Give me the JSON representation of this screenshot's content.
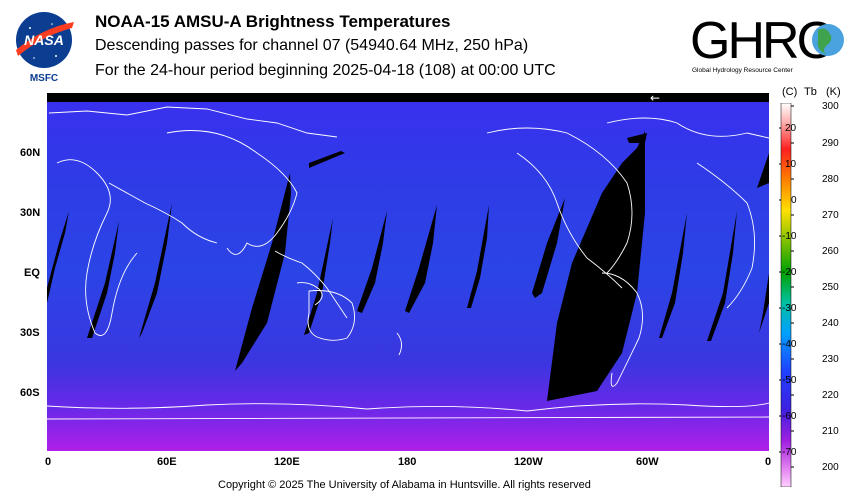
{
  "header": {
    "title": "NOAA-15 AMSU-A Brightness Temperatures",
    "subtitle": "Descending passes for channel 07 (54940.64 MHz, 250 hPa)",
    "period": "For the 24-hour period beginning 2025-04-18 (108) at 00:00 UTC"
  },
  "logos": {
    "nasa_text": "NASA",
    "msfc_text": "MSFC",
    "ghrc_text": "GHRC",
    "ghrc_sub": "Global Hydrology Resource Center"
  },
  "map": {
    "lat_labels": [
      "60N",
      "30N",
      "EQ",
      "30S",
      "60S"
    ],
    "lon_labels": [
      "0",
      "60E",
      "120E",
      "180",
      "120W",
      "60W",
      "0"
    ],
    "arrow_label": "←",
    "background_color": "#2f35e0",
    "gap_color": "#000000",
    "coast_color": "#ffffff"
  },
  "colorbar": {
    "head_c": "(C)",
    "head_tb": "Tb",
    "head_k": "(K)",
    "celsius": [
      "20",
      "10",
      "0",
      "-10",
      "-20",
      "-30",
      "-40",
      "-50",
      "-60",
      "-70"
    ],
    "kelvin": [
      "300",
      "290",
      "280",
      "270",
      "260",
      "250",
      "240",
      "230",
      "220",
      "210",
      "200"
    ]
  },
  "footer": {
    "copyright": "Copyright © 2025 The University of Alabama in Huntsville.  All rights reserved"
  }
}
